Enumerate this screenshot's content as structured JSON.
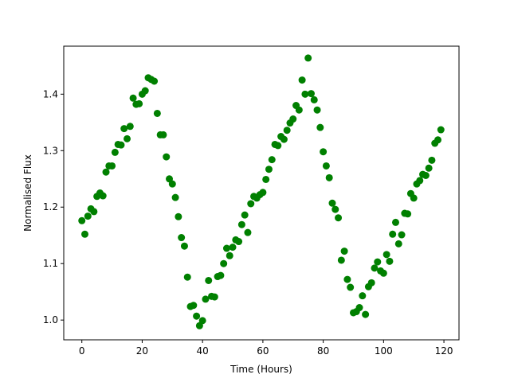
{
  "chart_data": {
    "type": "scatter",
    "title": "",
    "xlabel": "Time (Hours)",
    "ylabel": "Normalised Flux",
    "xlim": [
      -6,
      125
    ],
    "ylim": [
      0.965,
      1.485
    ],
    "xticks": [
      0,
      20,
      40,
      60,
      80,
      100,
      120
    ],
    "yticks": [
      1.0,
      1.1,
      1.2,
      1.3,
      1.4
    ],
    "grid": false,
    "legend": "none",
    "marker_color": "#008000",
    "series": [
      {
        "points": [
          [
            0,
            1.176
          ],
          [
            1,
            1.152
          ],
          [
            2,
            1.184
          ],
          [
            3,
            1.197
          ],
          [
            4,
            1.192
          ],
          [
            5,
            1.219
          ],
          [
            6,
            1.225
          ],
          [
            7,
            1.22
          ],
          [
            8,
            1.262
          ],
          [
            9,
            1.273
          ],
          [
            10,
            1.273
          ],
          [
            11,
            1.297
          ],
          [
            12,
            1.311
          ],
          [
            13,
            1.31
          ],
          [
            14,
            1.339
          ],
          [
            15,
            1.321
          ],
          [
            16,
            1.343
          ],
          [
            17,
            1.393
          ],
          [
            18,
            1.382
          ],
          [
            19,
            1.383
          ],
          [
            20,
            1.4
          ],
          [
            21,
            1.406
          ],
          [
            22,
            1.429
          ],
          [
            23,
            1.426
          ],
          [
            24,
            1.423
          ],
          [
            25,
            1.366
          ],
          [
            26,
            1.328
          ],
          [
            27,
            1.328
          ],
          [
            28,
            1.289
          ],
          [
            29,
            1.25
          ],
          [
            30,
            1.241
          ],
          [
            31,
            1.217
          ],
          [
            32,
            1.183
          ],
          [
            33,
            1.146
          ],
          [
            34,
            1.131
          ],
          [
            35,
            1.076
          ],
          [
            36,
            1.024
          ],
          [
            37,
            1.026
          ],
          [
            38,
            1.007
          ],
          [
            39,
            0.99
          ],
          [
            40,
            0.999
          ],
          [
            41,
            1.037
          ],
          [
            42,
            1.07
          ],
          [
            43,
            1.042
          ],
          [
            44,
            1.041
          ],
          [
            45,
            1.077
          ],
          [
            46,
            1.079
          ],
          [
            47,
            1.1
          ],
          [
            48,
            1.127
          ],
          [
            49,
            1.114
          ],
          [
            50,
            1.129
          ],
          [
            51,
            1.142
          ],
          [
            52,
            1.139
          ],
          [
            53,
            1.169
          ],
          [
            54,
            1.186
          ],
          [
            55,
            1.155
          ],
          [
            56,
            1.206
          ],
          [
            57,
            1.219
          ],
          [
            58,
            1.216
          ],
          [
            59,
            1.222
          ],
          [
            60,
            1.226
          ],
          [
            61,
            1.249
          ],
          [
            62,
            1.267
          ],
          [
            63,
            1.284
          ],
          [
            64,
            1.311
          ],
          [
            65,
            1.309
          ],
          [
            66,
            1.325
          ],
          [
            67,
            1.32
          ],
          [
            68,
            1.336
          ],
          [
            69,
            1.349
          ],
          [
            70,
            1.356
          ],
          [
            71,
            1.38
          ],
          [
            72,
            1.372
          ],
          [
            73,
            1.425
          ],
          [
            74,
            1.4
          ],
          [
            75,
            1.464
          ],
          [
            76,
            1.401
          ],
          [
            77,
            1.39
          ],
          [
            78,
            1.372
          ],
          [
            79,
            1.341
          ],
          [
            80,
            1.298
          ],
          [
            81,
            1.273
          ],
          [
            82,
            1.252
          ],
          [
            83,
            1.207
          ],
          [
            84,
            1.196
          ],
          [
            85,
            1.181
          ],
          [
            86,
            1.106
          ],
          [
            87,
            1.122
          ],
          [
            88,
            1.072
          ],
          [
            89,
            1.058
          ],
          [
            90,
            1.013
          ],
          [
            91,
            1.015
          ],
          [
            92,
            1.022
          ],
          [
            93,
            1.043
          ],
          [
            94,
            1.01
          ],
          [
            95,
            1.059
          ],
          [
            96,
            1.066
          ],
          [
            97,
            1.092
          ],
          [
            98,
            1.103
          ],
          [
            99,
            1.087
          ],
          [
            100,
            1.083
          ],
          [
            101,
            1.116
          ],
          [
            102,
            1.104
          ],
          [
            103,
            1.152
          ],
          [
            104,
            1.173
          ],
          [
            105,
            1.135
          ],
          [
            106,
            1.151
          ],
          [
            107,
            1.189
          ],
          [
            108,
            1.188
          ],
          [
            109,
            1.224
          ],
          [
            110,
            1.216
          ],
          [
            111,
            1.241
          ],
          [
            112,
            1.247
          ],
          [
            113,
            1.258
          ],
          [
            114,
            1.256
          ],
          [
            115,
            1.269
          ],
          [
            116,
            1.283
          ],
          [
            117,
            1.313
          ],
          [
            118,
            1.319
          ],
          [
            119,
            1.337
          ]
        ]
      }
    ]
  }
}
